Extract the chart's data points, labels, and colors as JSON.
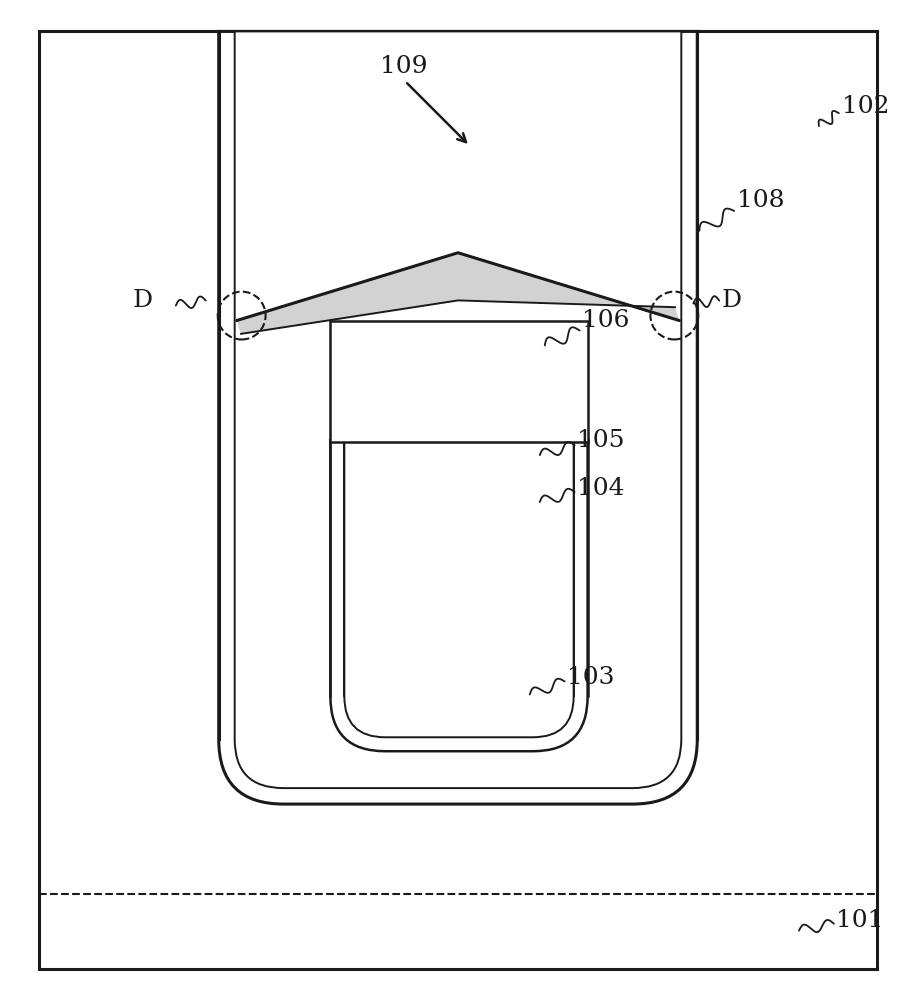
{
  "bg_color": "#ffffff",
  "line_color": "#1a1a1a",
  "figure_width": 9.16,
  "figure_height": 10.0,
  "lw_thick": 2.2,
  "lw_med": 1.8,
  "lw_thin": 1.4
}
